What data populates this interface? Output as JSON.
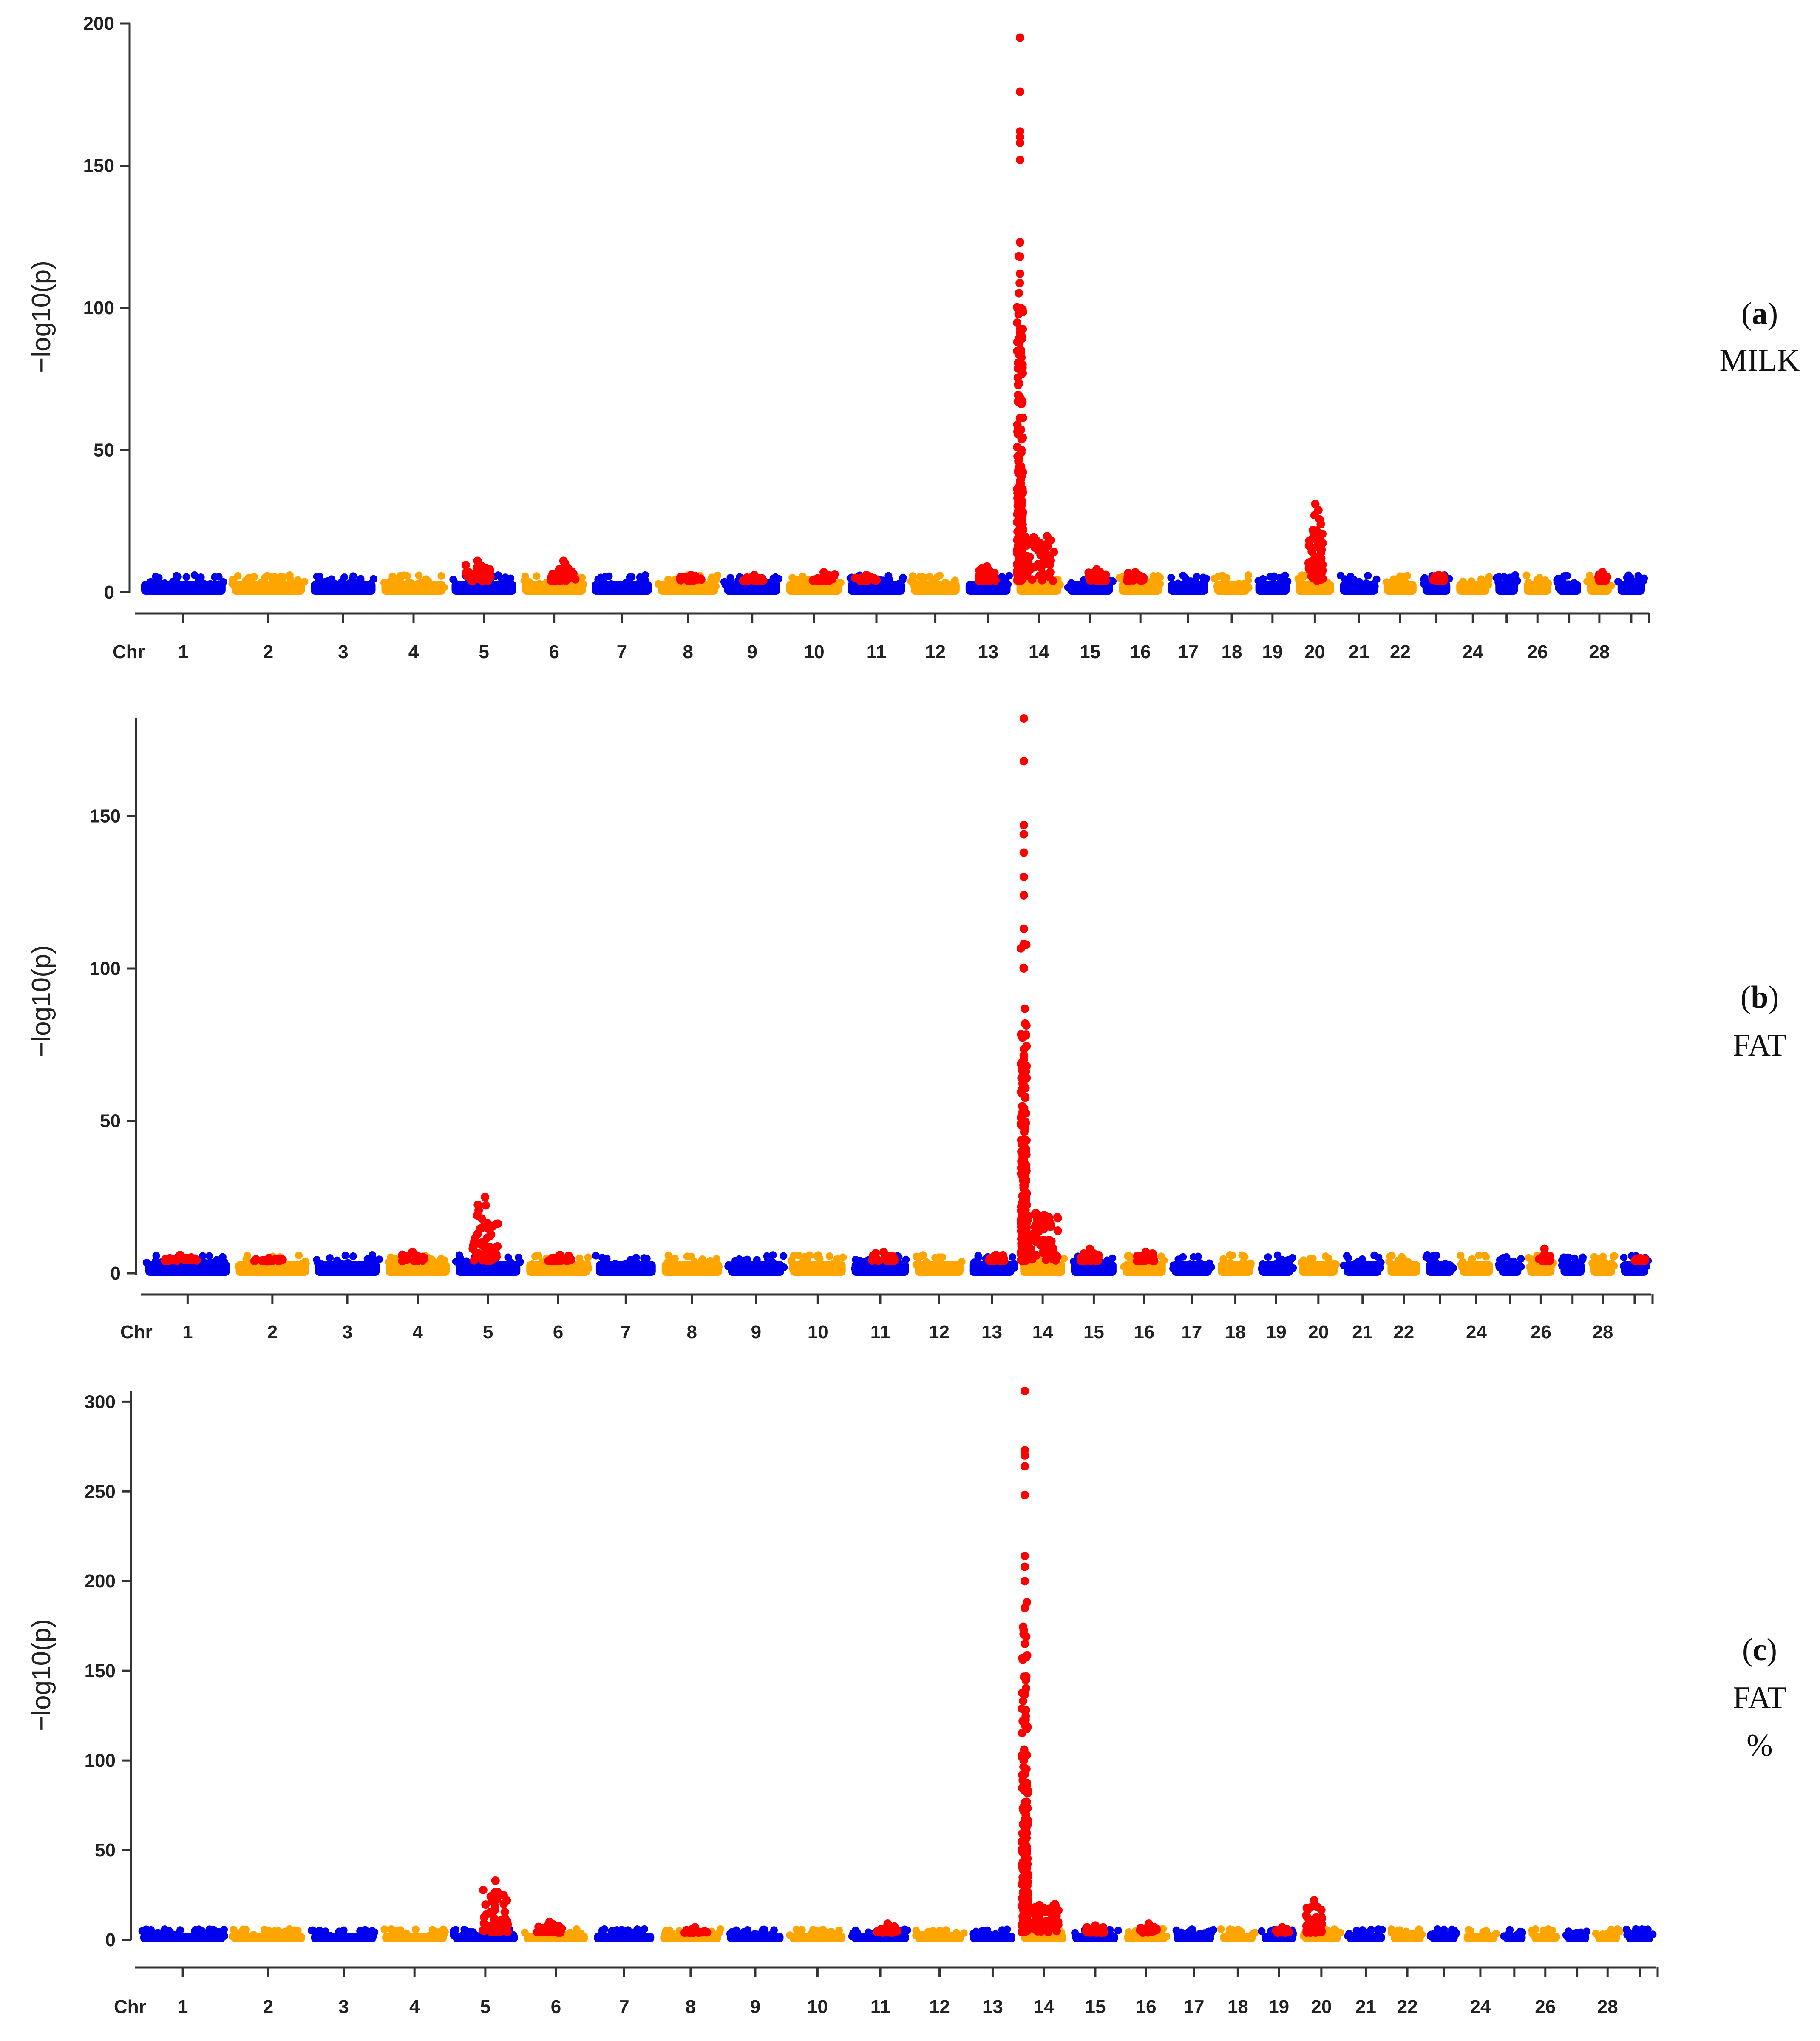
{
  "colors": {
    "odd_chromosome": "#0000EE",
    "even_chromosome": "#FFA500",
    "significant": "#FF0000",
    "axis": "#333333"
  },
  "chart_data": [
    {
      "type": "scatter",
      "subtype": "manhattan",
      "panel_letter": "a",
      "trait_lines": [
        "MILK"
      ],
      "ylabel": "−log10(p)",
      "xlabel_prefix": "Chr",
      "yticks": [
        0,
        50,
        100,
        150,
        200
      ],
      "ylim": [
        0,
        200
      ],
      "chromosome_labels": [
        "1",
        "2",
        "3",
        "4",
        "5",
        "6",
        "7",
        "8",
        "9",
        "10",
        "11",
        "12",
        "13",
        "14",
        "15",
        "16",
        "17",
        "18",
        "19",
        "20",
        "21",
        "22",
        "24",
        "26",
        "28"
      ],
      "chromosome_count": 29,
      "baseline_max": 4,
      "peaks": [
        {
          "chr": 5,
          "max": 11
        },
        {
          "chr": 6,
          "max": 11
        },
        {
          "chr": 8,
          "max": 6
        },
        {
          "chr": 9,
          "max": 6
        },
        {
          "chr": 10,
          "max": 7
        },
        {
          "chr": 11,
          "max": 6
        },
        {
          "chr": 13,
          "max": 9
        },
        {
          "chr": 14,
          "max": 195
        },
        {
          "chr": 15,
          "max": 8
        },
        {
          "chr": 16,
          "max": 7
        },
        {
          "chr": 20,
          "max": 31
        },
        {
          "chr": 23,
          "max": 6
        },
        {
          "chr": 28,
          "max": 7
        }
      ],
      "top_values_chr14": [
        195,
        176,
        162,
        160,
        158,
        152,
        123,
        118,
        112,
        100
      ]
    },
    {
      "type": "scatter",
      "subtype": "manhattan",
      "panel_letter": "b",
      "trait_lines": [
        "FAT"
      ],
      "ylabel": "−log10(p)",
      "xlabel_prefix": "Chr",
      "yticks": [
        0,
        50,
        100,
        150
      ],
      "ylim": [
        0,
        182
      ],
      "chromosome_labels": [
        "1",
        "2",
        "3",
        "4",
        "5",
        "6",
        "7",
        "8",
        "9",
        "10",
        "11",
        "12",
        "13",
        "14",
        "15",
        "16",
        "17",
        "18",
        "19",
        "20",
        "21",
        "22",
        "24",
        "26",
        "28"
      ],
      "chromosome_count": 29,
      "baseline_max": 4,
      "peaks": [
        {
          "chr": 1,
          "max": 6
        },
        {
          "chr": 2,
          "max": 5
        },
        {
          "chr": 4,
          "max": 7
        },
        {
          "chr": 5,
          "max": 25
        },
        {
          "chr": 6,
          "max": 6
        },
        {
          "chr": 11,
          "max": 7
        },
        {
          "chr": 13,
          "max": 6
        },
        {
          "chr": 14,
          "max": 182
        },
        {
          "chr": 15,
          "max": 8
        },
        {
          "chr": 16,
          "max": 7
        },
        {
          "chr": 26,
          "max": 8
        },
        {
          "chr": 29,
          "max": 5
        }
      ],
      "top_values_chr14": [
        182,
        168,
        147,
        144,
        138,
        130,
        124,
        113,
        108,
        100
      ]
    },
    {
      "type": "scatter",
      "subtype": "manhattan",
      "panel_letter": "c",
      "trait_lines": [
        "FAT",
        "%"
      ],
      "ylabel": "−log10(p)",
      "xlabel_prefix": "Chr",
      "yticks": [
        0,
        50,
        100,
        150,
        200,
        250,
        300
      ],
      "ylim": [
        0,
        306
      ],
      "chromosome_labels": [
        "1",
        "2",
        "3",
        "4",
        "5",
        "6",
        "7",
        "8",
        "9",
        "10",
        "11",
        "12",
        "13",
        "14",
        "15",
        "16",
        "17",
        "18",
        "19",
        "20",
        "21",
        "22",
        "24",
        "26",
        "28"
      ],
      "chromosome_count": 29,
      "baseline_max": 4,
      "peaks": [
        {
          "chr": 5,
          "max": 33
        },
        {
          "chr": 6,
          "max": 10
        },
        {
          "chr": 8,
          "max": 7
        },
        {
          "chr": 11,
          "max": 9
        },
        {
          "chr": 14,
          "max": 306
        },
        {
          "chr": 15,
          "max": 8
        },
        {
          "chr": 16,
          "max": 9
        },
        {
          "chr": 19,
          "max": 7
        },
        {
          "chr": 20,
          "max": 22
        }
      ],
      "top_values_chr14": [
        306,
        273,
        270,
        264,
        248,
        214,
        208,
        200,
        185,
        165,
        128
      ]
    }
  ]
}
